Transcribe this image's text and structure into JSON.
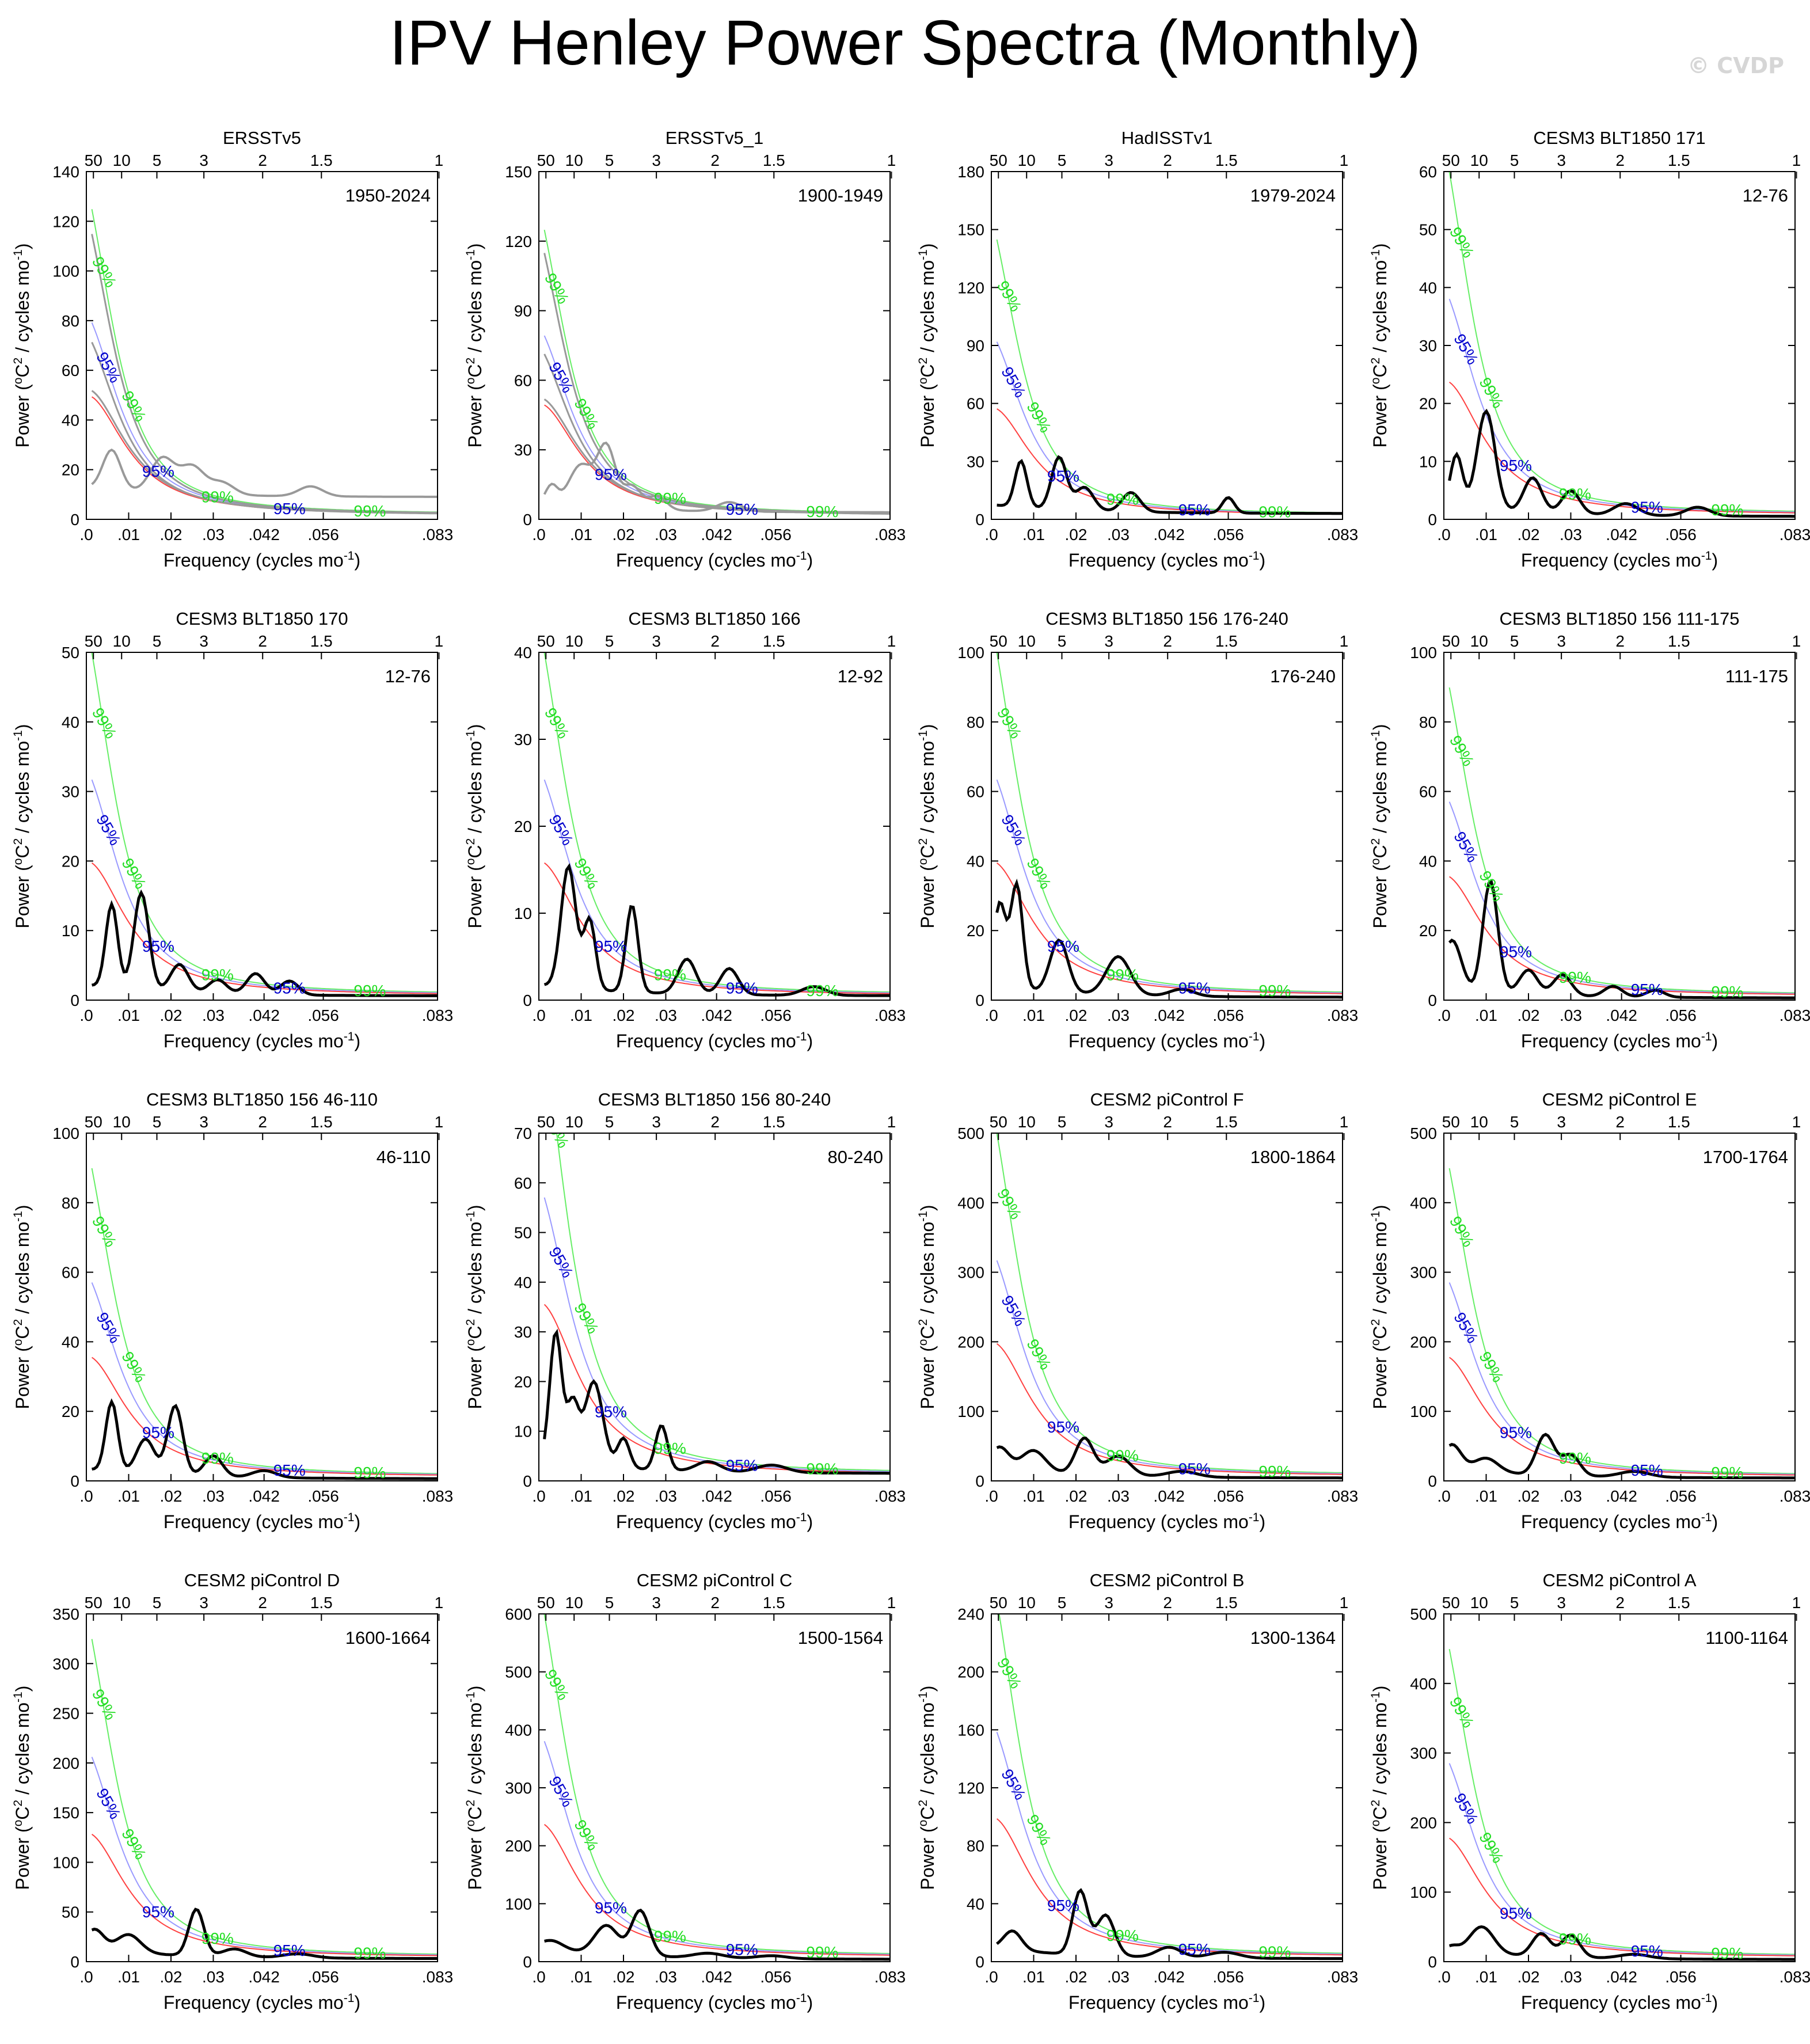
{
  "page": {
    "title": "IPV Henley Power Spectra (Monthly)",
    "watermark": "© CVDP"
  },
  "axes_common": {
    "xlabel": "Frequency (cycles mo",
    "xlabel_sup": "-1",
    "xlabel_end": ")",
    "ylabel": "Power (",
    "ylabel_sup1": "o",
    "ylabel_c": "C",
    "ylabel_sup2": "2",
    "ylabel_mid": " / cycles mo",
    "ylabel_sup3": "-1",
    "ylabel_end": ")",
    "xlim": [
      0,
      0.083
    ],
    "x_ticks": [
      0,
      0.01,
      0.02,
      0.03,
      0.042,
      0.056,
      0.083
    ],
    "x_tick_labels": [
      ".0",
      ".01",
      ".02",
      ".03",
      ".042",
      ".056",
      ".083"
    ],
    "period_ticks": [
      50,
      10,
      5,
      3,
      2,
      1.5,
      1
    ],
    "period_tick_labels": [
      "50",
      "10",
      "5",
      "3",
      "2",
      "1.5",
      "1"
    ],
    "label_99": "99%",
    "label_95": "95%",
    "colors": {
      "spectrum": "#000000",
      "red_noise": "#ff4040",
      "ci95": "#9a9aff",
      "ci99": "#66ee66",
      "label95": "#0000cc",
      "label99": "#22dd22",
      "obs_gray": "#999999"
    }
  },
  "chart_data": [
    {
      "type": "line",
      "title": "ERSSTv5",
      "period": "1950-2024",
      "ylim": [
        0,
        140
      ],
      "yticks": [
        0,
        20,
        40,
        60,
        80,
        100,
        120,
        140
      ],
      "ar1": 50,
      "gray": true,
      "peaks": [
        [
          0.006,
          16,
          0.003
        ],
        [
          0.018,
          14,
          0.004
        ],
        [
          0.025,
          11,
          0.004
        ],
        [
          0.032,
          5,
          0.004
        ],
        [
          0.053,
          4,
          0.004
        ]
      ],
      "base": 9
    },
    {
      "type": "line",
      "title": "ERSSTv5_1",
      "period": "1900-1949",
      "ylim": [
        0,
        150
      ],
      "yticks": [
        0,
        30,
        60,
        90,
        120,
        150
      ],
      "ar1": 50,
      "gray": true,
      "peaks": [
        [
          0.003,
          8,
          0.002
        ],
        [
          0.01,
          18,
          0.004
        ],
        [
          0.016,
          26,
          0.003
        ],
        [
          0.022,
          10,
          0.003
        ],
        [
          0.028,
          6,
          0.003
        ],
        [
          0.045,
          4,
          0.004
        ]
      ],
      "base": 3
    },
    {
      "type": "line",
      "title": "HadISSTv1",
      "period": "1979-2024",
      "ylim": [
        0,
        180
      ],
      "yticks": [
        0,
        30,
        60,
        90,
        120,
        150,
        180
      ],
      "ar1": 58,
      "peaks": [
        [
          0.007,
          24,
          0.002
        ],
        [
          0.016,
          27,
          0.0025
        ],
        [
          0.022,
          12,
          0.003
        ],
        [
          0.033,
          10,
          0.003
        ],
        [
          0.056,
          8,
          0.002
        ]
      ],
      "base": 3
    },
    {
      "type": "line",
      "title": "CESM3 BLT1850 171",
      "period": "12-76",
      "ylim": [
        0,
        60
      ],
      "yticks": [
        0,
        10,
        20,
        30,
        40,
        50,
        60
      ],
      "ar1": 24,
      "peaks": [
        [
          0.003,
          9,
          0.002
        ],
        [
          0.01,
          17,
          0.003
        ],
        [
          0.021,
          6,
          0.003
        ],
        [
          0.03,
          4,
          0.003
        ],
        [
          0.043,
          2,
          0.004
        ],
        [
          0.06,
          1.5,
          0.004
        ]
      ],
      "base": 0.5
    },
    {
      "type": "line",
      "title": "CESM3 BLT1850 170",
      "period": "12-76",
      "ylim": [
        0,
        50
      ],
      "yticks": [
        0,
        10,
        20,
        30,
        40,
        50
      ],
      "ar1": 20,
      "peaks": [
        [
          0.006,
          12,
          0.002
        ],
        [
          0.013,
          14,
          0.0025
        ],
        [
          0.022,
          4,
          0.003
        ],
        [
          0.031,
          2,
          0.003
        ],
        [
          0.04,
          3,
          0.003
        ],
        [
          0.048,
          2,
          0.003
        ]
      ],
      "base": 0.6
    },
    {
      "type": "line",
      "title": "CESM3 BLT1850 166",
      "period": "12-92",
      "ylim": [
        0,
        40
      ],
      "yticks": [
        0,
        10,
        20,
        30,
        40
      ],
      "ar1": 16,
      "peaks": [
        [
          0.007,
          14,
          0.0025
        ],
        [
          0.012,
          8,
          0.002
        ],
        [
          0.022,
          10,
          0.002
        ],
        [
          0.035,
          4,
          0.003
        ],
        [
          0.045,
          3,
          0.003
        ],
        [
          0.065,
          1,
          0.004
        ]
      ],
      "base": 0.5
    },
    {
      "type": "line",
      "title": "CESM3 BLT1850 156 176-240",
      "period": "176-240",
      "ylim": [
        0,
        100
      ],
      "yticks": [
        0,
        20,
        40,
        60,
        80,
        100
      ],
      "ar1": 40,
      "peaks": [
        [
          0.002,
          24,
          0.002
        ],
        [
          0.006,
          30,
          0.002
        ],
        [
          0.016,
          15,
          0.003
        ],
        [
          0.03,
          11,
          0.004
        ],
        [
          0.045,
          2,
          0.004
        ]
      ],
      "base": 0.8
    },
    {
      "type": "line",
      "title": "CESM3 BLT1850 156 111-175",
      "period": "111-175",
      "ylim": [
        0,
        100
      ],
      "yticks": [
        0,
        20,
        40,
        60,
        80,
        100
      ],
      "ar1": 36,
      "peaks": [
        [
          0.002,
          14,
          0.003
        ],
        [
          0.011,
          32,
          0.0025
        ],
        [
          0.02,
          7,
          0.003
        ],
        [
          0.028,
          6,
          0.003
        ],
        [
          0.04,
          3,
          0.003
        ],
        [
          0.05,
          2,
          0.003
        ]
      ],
      "base": 0.6
    },
    {
      "type": "line",
      "title": "CESM3 BLT1850 156 46-110",
      "period": "46-110",
      "ylim": [
        0,
        100
      ],
      "yticks": [
        0,
        20,
        40,
        60,
        80,
        100
      ],
      "ar1": 36,
      "peaks": [
        [
          0.006,
          20,
          0.002
        ],
        [
          0.014,
          10,
          0.003
        ],
        [
          0.021,
          20,
          0.0025
        ],
        [
          0.03,
          6,
          0.003
        ],
        [
          0.042,
          2,
          0.004
        ]
      ],
      "base": 0.6
    },
    {
      "type": "line",
      "title": "CESM3 BLT1850 156 80-240",
      "period": "80-240",
      "ylim": [
        0,
        70
      ],
      "yticks": [
        0,
        10,
        20,
        30,
        40,
        50,
        60,
        70
      ],
      "ar1": 36,
      "peaks": [
        [
          0.004,
          26,
          0.002
        ],
        [
          0.008,
          12,
          0.002
        ],
        [
          0.013,
          17,
          0.003
        ],
        [
          0.02,
          6,
          0.002
        ],
        [
          0.029,
          9,
          0.002
        ],
        [
          0.04,
          2,
          0.004
        ],
        [
          0.055,
          1.5,
          0.005
        ]
      ],
      "base": 1.5
    },
    {
      "type": "line",
      "title": "CESM2 piControl F",
      "period": "1800-1864",
      "ylim": [
        0,
        500
      ],
      "yticks": [
        0,
        100,
        200,
        300,
        400,
        500
      ],
      "ar1": 200,
      "peaks": [
        [
          0.002,
          30,
          0.003
        ],
        [
          0.01,
          30,
          0.004
        ],
        [
          0.022,
          52,
          0.003
        ],
        [
          0.03,
          28,
          0.004
        ],
        [
          0.045,
          8,
          0.005
        ]
      ],
      "base": 4
    },
    {
      "type": "line",
      "title": "CESM2 piControl E",
      "period": "1700-1764",
      "ylim": [
        0,
        500
      ],
      "yticks": [
        0,
        100,
        200,
        300,
        400,
        500
      ],
      "ar1": 180,
      "peaks": [
        [
          0.002,
          35,
          0.003
        ],
        [
          0.01,
          20,
          0.004
        ],
        [
          0.024,
          58,
          0.003
        ],
        [
          0.03,
          30,
          0.003
        ],
        [
          0.045,
          8,
          0.005
        ]
      ],
      "base": 4
    },
    {
      "type": "line",
      "title": "CESM2 piControl D",
      "period": "1600-1664",
      "ylim": [
        0,
        350
      ],
      "yticks": [
        0,
        50,
        100,
        150,
        200,
        250,
        300,
        350
      ],
      "ar1": 130,
      "peaks": [
        [
          0.002,
          20,
          0.003
        ],
        [
          0.01,
          18,
          0.004
        ],
        [
          0.026,
          47,
          0.0025
        ],
        [
          0.035,
          8,
          0.004
        ],
        [
          0.05,
          4,
          0.005
        ]
      ],
      "base": 3
    },
    {
      "type": "line",
      "title": "CESM2 piControl C",
      "period": "1500-1564",
      "ylim": [
        0,
        600
      ],
      "yticks": [
        0,
        100,
        200,
        300,
        400,
        500,
        600
      ],
      "ar1": 240,
      "peaks": [
        [
          0.003,
          16,
          0.004
        ],
        [
          0.016,
          50,
          0.004
        ],
        [
          0.024,
          78,
          0.003
        ],
        [
          0.04,
          8,
          0.005
        ],
        [
          0.055,
          5,
          0.005
        ]
      ],
      "base": 4
    },
    {
      "type": "line",
      "title": "CESM2 piControl B",
      "period": "1300-1364",
      "ylim": [
        0,
        240
      ],
      "yticks": [
        0,
        40,
        80,
        120,
        160,
        200,
        240
      ],
      "ar1": 100,
      "peaks": [
        [
          0.005,
          13,
          0.003
        ],
        [
          0.021,
          44,
          0.0025
        ],
        [
          0.027,
          28,
          0.003
        ],
        [
          0.042,
          7,
          0.004
        ],
        [
          0.055,
          4,
          0.005
        ]
      ],
      "base": 2
    },
    {
      "type": "line",
      "title": "CESM2 piControl A",
      "period": "1100-1164",
      "ylim": [
        0,
        500
      ],
      "yticks": [
        0,
        100,
        200,
        300,
        400,
        500
      ],
      "ar1": 180,
      "peaks": [
        [
          0.002,
          6,
          0.002
        ],
        [
          0.009,
          38,
          0.004
        ],
        [
          0.023,
          33,
          0.003
        ],
        [
          0.03,
          32,
          0.003
        ],
        [
          0.045,
          6,
          0.005
        ]
      ],
      "base": 3
    }
  ]
}
